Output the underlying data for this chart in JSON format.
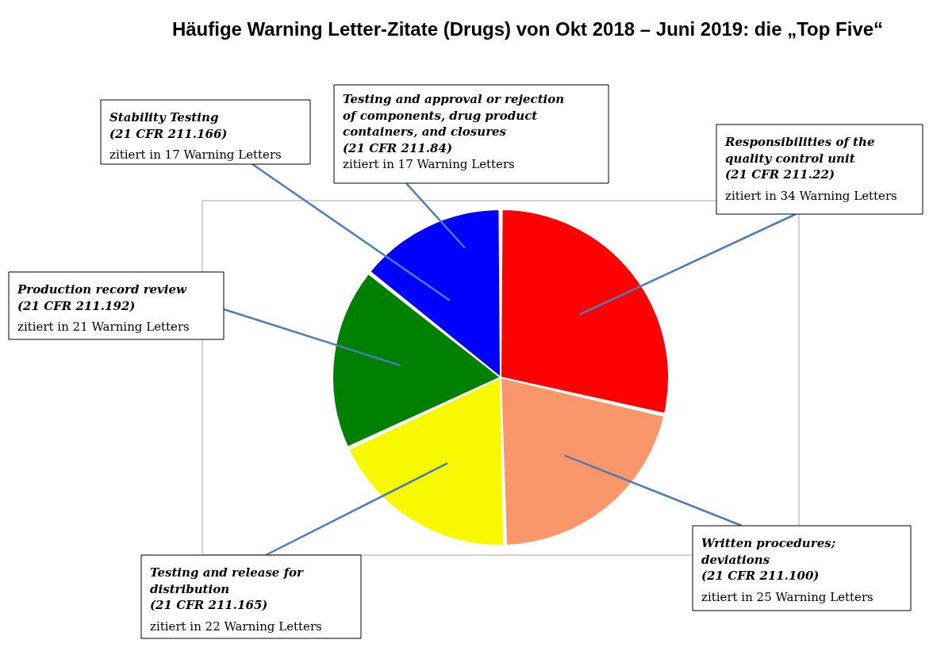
{
  "chart_data": {
    "type": "pie",
    "title": "Häufige Warning Letter-Zitate (Drugs) von Okt 2018 – Juni 2019: die „Top Five“",
    "categories": [
      "Responsibilities of the\nquality control unit\n(21 CFR 211.22)",
      "Written procedures;\ndeviations\n(21 CFR 211.100)",
      "Testing and release for\ndistribution\n(21 CFR 211.165)",
      "Production record review\n(21 CFR 211.192)",
      "Stability Testing\n(21 CFR 211.166)"
    ],
    "values": [
      34,
      25,
      22,
      21,
      17
    ],
    "colors": [
      "#ff0000",
      "#f9976a",
      "#f8f800",
      "#008000",
      "#0000ff"
    ],
    "value_labels": [
      "zitiert in 34 Warning Letters",
      "zitiert in 25 Warning Letters",
      "zitiert in 22 Warning Letters",
      "zitiert in 21 Warning Letters",
      "zitiert in 17 Warning Letters"
    ],
    "annotations": [
      "Testing and approval or rejection\nof components, drug product\ncontainers, and closures\n(21 CFR 211.84)\nzitiert in 17 Warning Letters"
    ]
  }
}
